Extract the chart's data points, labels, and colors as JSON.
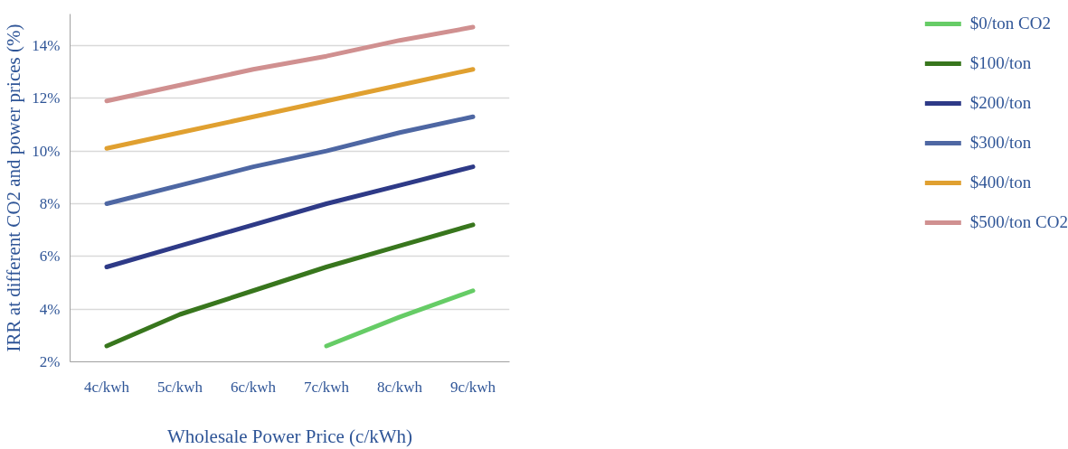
{
  "chart_data": {
    "type": "line",
    "xlabel": "Wholesale Power Price (c/kWh)",
    "ylabel": "IRR at different CO2 and power prices (%)",
    "categories": [
      "4c/kwh",
      "5c/kwh",
      "6c/kwh",
      "7c/kwh",
      "8c/kwh",
      "9c/kwh"
    ],
    "series": [
      {
        "name": "$0/ton CO2",
        "color": "#66cc66",
        "values": [
          null,
          null,
          null,
          2.6,
          3.7,
          4.7
        ]
      },
      {
        "name": "$100/ton",
        "color": "#38761d",
        "values": [
          2.6,
          3.8,
          4.7,
          5.6,
          6.4,
          7.2
        ]
      },
      {
        "name": "$200/ton",
        "color": "#2e3a87",
        "values": [
          5.6,
          6.4,
          7.2,
          8.0,
          8.7,
          9.4
        ]
      },
      {
        "name": "$300/ton",
        "color": "#4e67a3",
        "values": [
          8.0,
          8.7,
          9.4,
          10.0,
          10.7,
          11.3
        ]
      },
      {
        "name": "$400/ton",
        "color": "#e0a030",
        "values": [
          10.1,
          10.7,
          11.3,
          11.9,
          12.5,
          13.1
        ]
      },
      {
        "name": "$500/ton CO2",
        "color": "#d09090",
        "values": [
          11.9,
          12.5,
          13.1,
          13.6,
          14.2,
          14.7
        ]
      }
    ],
    "ylim": [
      2,
      15.2
    ],
    "yticks": [
      {
        "value": 2,
        "label": "2%"
      },
      {
        "value": 4,
        "label": "4%"
      },
      {
        "value": 6,
        "label": "6%"
      },
      {
        "value": 8,
        "label": "8%"
      },
      {
        "value": 10,
        "label": "10%"
      },
      {
        "value": 12,
        "label": "12%"
      },
      {
        "value": 14,
        "label": "14%"
      }
    ],
    "grid": "y",
    "legend": "right",
    "marker": "none",
    "line_style": "solid"
  }
}
